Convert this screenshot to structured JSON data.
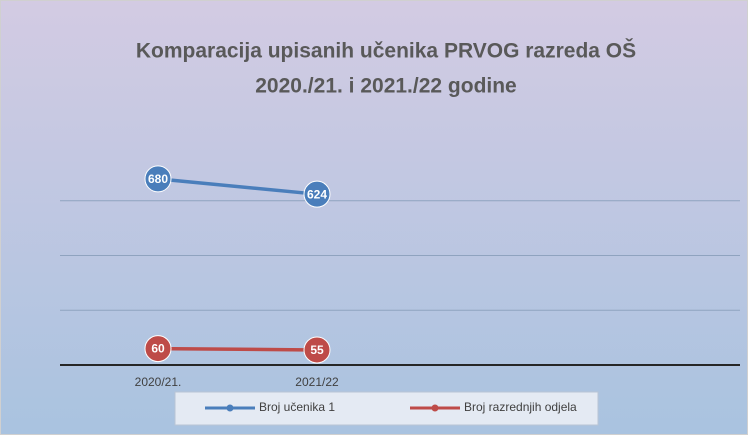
{
  "chart_data": {
    "type": "line",
    "title": [
      "Komparacija upisanih učenika PRVOG razreda OŠ",
      "2020./21. i  2021./22 godine"
    ],
    "categories": [
      "2020/21.",
      "2021/22",
      null,
      null
    ],
    "series": [
      {
        "name": "Broj učenika  1",
        "color": "#4a7ebb",
        "values": [
          680,
          624,
          null,
          null
        ]
      },
      {
        "name": "Broj razrednjih odjela",
        "color": "#be4b48",
        "values": [
          60,
          55,
          null,
          null
        ]
      }
    ],
    "ylim": [
      0,
      800
    ],
    "yticks": [
      0,
      200,
      400,
      600
    ],
    "grid": true,
    "legend": "bottom"
  }
}
